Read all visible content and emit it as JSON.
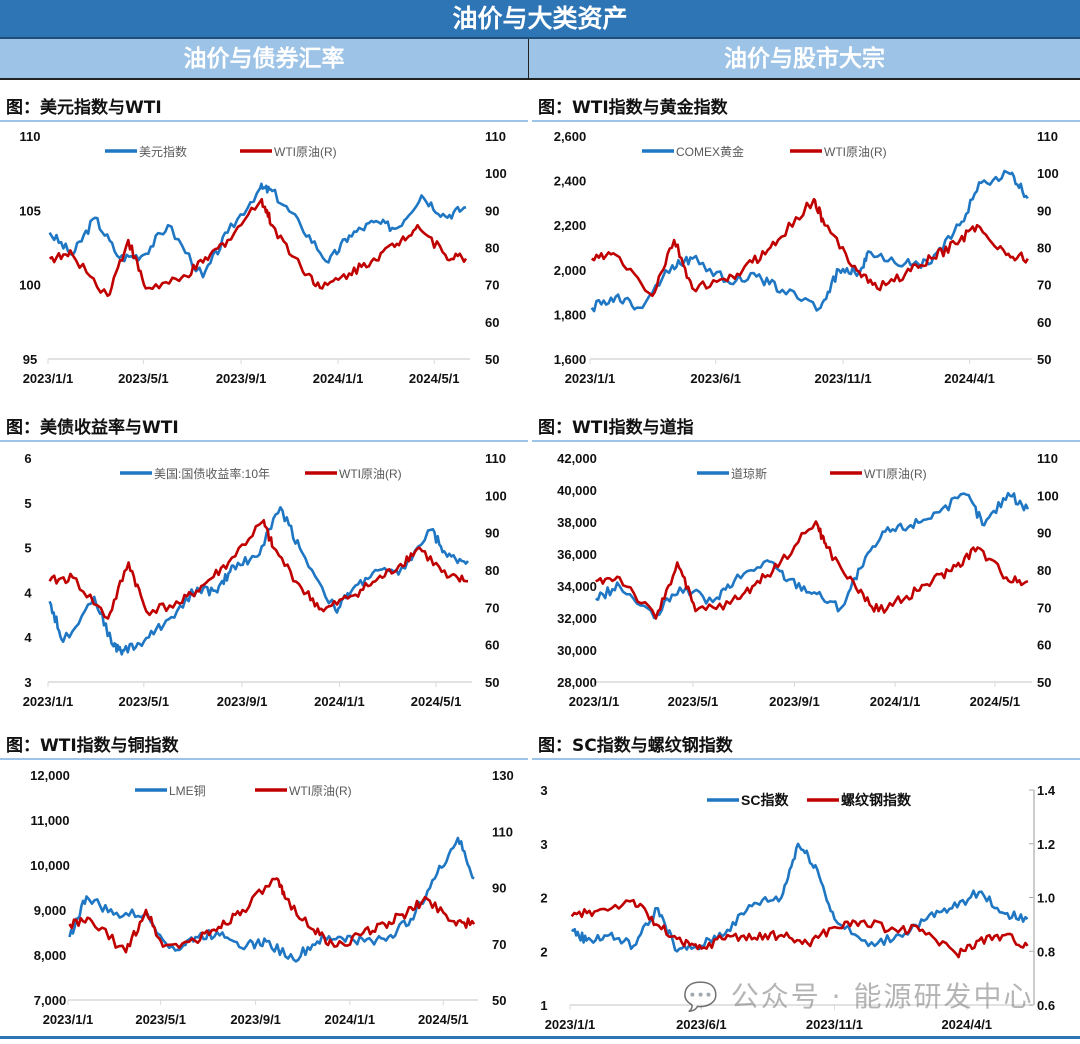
{
  "header": {
    "title": "油价与大类资产"
  },
  "sections": [
    {
      "label": "油价与债券汇率"
    },
    {
      "label": "油价与股市大宗"
    }
  ],
  "colors": {
    "header_bg": "#2E75B6",
    "subheader_bg": "#9DC3E6",
    "series_blue": "#1F77C4",
    "series_red": "#C00000"
  },
  "watermark": "公众号 · 能源研发中心",
  "chart_data": [
    {
      "id": "usd",
      "type": "line",
      "title": "图：美元指数与WTI",
      "xticks": [
        "2023/1/1",
        "2023/5/1",
        "2023/9/1",
        "2024/1/1",
        "2024/5/1"
      ],
      "xlim": [
        "2023-01-01",
        "2024-06-15"
      ],
      "yleft": {
        "ticks": [
          "95",
          "100",
          "105",
          "110"
        ],
        "lim": [
          95,
          110
        ]
      },
      "yright": {
        "ticks": [
          "50",
          "60",
          "70",
          "80",
          "90",
          "100",
          "110"
        ],
        "lim": [
          50,
          110
        ]
      },
      "legend_position": "top-center",
      "series": [
        {
          "name": "美元指数",
          "color": "#1F77C4",
          "axis": "left",
          "dates": [
            "2023-01-03",
            "2023-02-01",
            "2023-03-01",
            "2023-04-01",
            "2023-05-01",
            "2023-06-01",
            "2023-07-15",
            "2023-08-15",
            "2023-09-25",
            "2023-10-10",
            "2023-11-15",
            "2023-12-20",
            "2024-01-15",
            "2024-02-15",
            "2024-03-15",
            "2024-04-15",
            "2024-05-15",
            "2024-06-10"
          ],
          "values": [
            103.5,
            102.0,
            104.5,
            101.8,
            102.0,
            104.0,
            100.5,
            103.5,
            106.5,
            106.3,
            104.0,
            101.5,
            103.3,
            104.2,
            103.8,
            106.0,
            104.6,
            105.2
          ]
        },
        {
          "name": "WTI原油(R)",
          "color": "#C00000",
          "axis": "right",
          "dates": [
            "2023-01-03",
            "2023-02-01",
            "2023-03-17",
            "2023-04-12",
            "2023-05-04",
            "2023-06-15",
            "2023-07-15",
            "2023-08-15",
            "2023-09-27",
            "2023-10-10",
            "2023-11-15",
            "2023-12-12",
            "2024-01-15",
            "2024-02-15",
            "2024-03-15",
            "2024-04-10",
            "2024-05-15",
            "2024-06-10"
          ],
          "values": [
            77,
            78,
            67,
            82,
            69,
            71,
            76,
            82,
            93,
            86,
            75,
            69,
            73,
            77,
            81,
            86,
            78,
            77
          ]
        }
      ]
    },
    {
      "id": "ust",
      "type": "line",
      "title": "图：美债收益率与WTI",
      "xticks": [
        "2023/1/1",
        "2023/5/1",
        "2023/9/1",
        "2024/1/1",
        "2024/5/1"
      ],
      "xlim": [
        "2023-01-01",
        "2024-06-15"
      ],
      "yleft": {
        "ticks": [
          "3",
          "4",
          "4",
          "5",
          "5",
          "6"
        ],
        "lim": [
          3,
          5.5
        ]
      },
      "yright": {
        "ticks": [
          "50",
          "60",
          "70",
          "80",
          "90",
          "100",
          "110"
        ],
        "lim": [
          50,
          110
        ]
      },
      "legend_position": "top-center",
      "series": [
        {
          "name": "美国:国债收益率:10年",
          "color": "#1F77C4",
          "axis": "left",
          "dates": [
            "2023-01-03",
            "2023-01-20",
            "2023-02-28",
            "2023-03-24",
            "2023-04-06",
            "2023-05-01",
            "2023-06-01",
            "2023-07-07",
            "2023-08-01",
            "2023-08-21",
            "2023-09-20",
            "2023-10-19",
            "2023-11-15",
            "2023-12-27",
            "2024-01-15",
            "2024-02-15",
            "2024-03-15",
            "2024-04-25",
            "2024-05-15",
            "2024-06-10"
          ],
          "values": [
            3.9,
            3.45,
            3.95,
            3.4,
            3.35,
            3.45,
            3.7,
            4.05,
            4.0,
            4.3,
            4.4,
            4.95,
            4.45,
            3.8,
            4.0,
            4.25,
            4.2,
            4.7,
            4.4,
            4.35
          ]
        },
        {
          "name": "WTI原油(R)",
          "color": "#C00000",
          "axis": "right",
          "dates": [
            "2023-01-03",
            "2023-02-01",
            "2023-03-17",
            "2023-04-12",
            "2023-05-04",
            "2023-06-15",
            "2023-07-15",
            "2023-08-15",
            "2023-09-27",
            "2023-10-10",
            "2023-11-15",
            "2023-12-12",
            "2024-01-15",
            "2024-02-15",
            "2024-03-15",
            "2024-04-10",
            "2024-05-15",
            "2024-06-10"
          ],
          "values": [
            77,
            78,
            67,
            82,
            69,
            71,
            76,
            82,
            93,
            86,
            75,
            69,
            73,
            77,
            81,
            86,
            78,
            77
          ]
        }
      ]
    },
    {
      "id": "copper",
      "type": "line",
      "title": "图：WTI指数与铜指数",
      "xticks": [
        "2023/1/1",
        "2023/5/1",
        "2023/9/1",
        "2024/1/1",
        "2024/5/1"
      ],
      "xlim": [
        "2023-01-01",
        "2024-06-15"
      ],
      "yleft": {
        "ticks": [
          "7,000",
          "8,000",
          "9,000",
          "10,000",
          "11,000",
          "12,000"
        ],
        "lim": [
          7000,
          12000
        ]
      },
      "yright": {
        "ticks": [
          "50",
          "70",
          "90",
          "110",
          "130"
        ],
        "lim": [
          50,
          130
        ]
      },
      "legend_position": "top-center",
      "series": [
        {
          "name": "LME铜",
          "color": "#1F77C4",
          "axis": "left",
          "dates": [
            "2023-01-03",
            "2023-01-25",
            "2023-03-01",
            "2023-04-10",
            "2023-05-20",
            "2023-06-15",
            "2023-07-20",
            "2023-08-20",
            "2023-09-15",
            "2023-10-20",
            "2023-11-20",
            "2023-12-20",
            "2024-01-20",
            "2024-02-20",
            "2024-03-20",
            "2024-04-20",
            "2024-05-20",
            "2024-06-10"
          ],
          "values": [
            8400,
            9300,
            8900,
            8900,
            8100,
            8400,
            8500,
            8200,
            8300,
            7900,
            8300,
            8400,
            8300,
            8400,
            8800,
            9700,
            10600,
            9700
          ]
        },
        {
          "name": "WTI原油(R)",
          "color": "#C00000",
          "axis": "right",
          "dates": [
            "2023-01-03",
            "2023-02-01",
            "2023-03-17",
            "2023-04-12",
            "2023-05-04",
            "2023-06-15",
            "2023-07-15",
            "2023-08-15",
            "2023-09-27",
            "2023-10-10",
            "2023-11-15",
            "2023-12-12",
            "2024-01-15",
            "2024-02-15",
            "2024-03-15",
            "2024-04-10",
            "2024-05-15",
            "2024-06-10"
          ],
          "values": [
            77,
            78,
            67,
            82,
            69,
            71,
            76,
            82,
            93,
            86,
            75,
            69,
            73,
            77,
            81,
            86,
            78,
            77
          ]
        }
      ]
    },
    {
      "id": "gold",
      "type": "line",
      "title": "图：WTI指数与黄金指数",
      "xticks": [
        "2023/1/1",
        "2023/6/1",
        "2023/11/1",
        "2024/4/1"
      ],
      "xlim": [
        "2023-01-01",
        "2024-06-15"
      ],
      "yleft": {
        "ticks": [
          "1,600",
          "1,800",
          "2,000",
          "2,200",
          "2,400",
          "2,600"
        ],
        "lim": [
          1600,
          2600
        ]
      },
      "yright": {
        "ticks": [
          "50",
          "60",
          "70",
          "80",
          "90",
          "100",
          "110"
        ],
        "lim": [
          50,
          110
        ]
      },
      "legend_position": "top-center",
      "series": [
        {
          "name": "COMEX黄金",
          "color": "#1F77C4",
          "axis": "left",
          "dates": [
            "2023-01-03",
            "2023-02-01",
            "2023-03-01",
            "2023-04-10",
            "2023-05-04",
            "2023-06-15",
            "2023-07-20",
            "2023-08-20",
            "2023-10-05",
            "2023-10-27",
            "2023-11-20",
            "2023-12-04",
            "2024-01-15",
            "2024-02-15",
            "2024-03-20",
            "2024-04-15",
            "2024-05-20",
            "2024-06-10"
          ],
          "values": [
            1830,
            1880,
            1830,
            2020,
            2050,
            1950,
            1970,
            1910,
            1830,
            2000,
            1990,
            2080,
            2030,
            2030,
            2200,
            2390,
            2430,
            2320
          ]
        },
        {
          "name": "WTI原油(R)",
          "color": "#C00000",
          "axis": "right",
          "dates": [
            "2023-01-03",
            "2023-02-01",
            "2023-03-17",
            "2023-04-12",
            "2023-05-04",
            "2023-06-15",
            "2023-07-15",
            "2023-08-15",
            "2023-09-27",
            "2023-10-10",
            "2023-11-15",
            "2023-12-12",
            "2024-01-15",
            "2024-02-15",
            "2024-03-15",
            "2024-04-10",
            "2024-05-15",
            "2024-06-10"
          ],
          "values": [
            77,
            78,
            67,
            82,
            69,
            71,
            76,
            82,
            93,
            86,
            75,
            69,
            73,
            77,
            81,
            86,
            78,
            77
          ]
        }
      ]
    },
    {
      "id": "dow",
      "type": "line",
      "title": "图：WTI指数与道指",
      "xticks": [
        "2023/1/1",
        "2023/5/1",
        "2023/9/1",
        "2024/1/1",
        "2024/5/1"
      ],
      "xlim": [
        "2023-01-01",
        "2024-06-15"
      ],
      "yleft": {
        "ticks": [
          "28,000",
          "30,000",
          "32,000",
          "34,000",
          "36,000",
          "38,000",
          "40,000",
          "42,000"
        ],
        "lim": [
          28000,
          42000
        ]
      },
      "yright": {
        "ticks": [
          "50",
          "60",
          "70",
          "80",
          "90",
          "100",
          "110"
        ],
        "lim": [
          50,
          110
        ]
      },
      "legend_position": "top-center",
      "series": [
        {
          "name": "道琼斯",
          "color": "#1F77C4",
          "axis": "left",
          "dates": [
            "2023-01-03",
            "2023-02-01",
            "2023-03-15",
            "2023-04-15",
            "2023-05-25",
            "2023-06-20",
            "2023-07-30",
            "2023-08-25",
            "2023-09-25",
            "2023-10-27",
            "2023-11-20",
            "2023-12-20",
            "2024-01-20",
            "2024-02-20",
            "2024-03-28",
            "2024-04-18",
            "2024-05-17",
            "2024-06-10"
          ],
          "values": [
            33200,
            34000,
            32000,
            33900,
            33000,
            34300,
            35600,
            34400,
            33600,
            32600,
            35100,
            37400,
            37800,
            38600,
            39700,
            37800,
            39800,
            38800
          ]
        },
        {
          "name": "WTI原油(R)",
          "color": "#C00000",
          "axis": "right",
          "dates": [
            "2023-01-03",
            "2023-02-01",
            "2023-03-17",
            "2023-04-12",
            "2023-05-04",
            "2023-06-15",
            "2023-07-15",
            "2023-08-15",
            "2023-09-27",
            "2023-10-10",
            "2023-11-15",
            "2023-12-12",
            "2024-01-15",
            "2024-02-15",
            "2024-03-15",
            "2024-04-10",
            "2024-05-15",
            "2024-06-10"
          ],
          "values": [
            77,
            78,
            67,
            82,
            69,
            71,
            76,
            82,
            93,
            86,
            75,
            69,
            73,
            77,
            81,
            86,
            78,
            77
          ]
        }
      ]
    },
    {
      "id": "sc",
      "type": "line",
      "title": "图：SC指数与螺纹钢指数",
      "xticks": [
        "2023/1/1",
        "2023/6/1",
        "2023/11/1",
        "2024/4/1"
      ],
      "xlim": [
        "2023-01-01",
        "2024-06-15"
      ],
      "yleft": {
        "ticks": [
          "1",
          "2",
          "2",
          "3",
          "3"
        ],
        "lim": [
          1,
          3
        ]
      },
      "yright": {
        "ticks": [
          "0.6",
          "0.8",
          "1.0",
          "1.2",
          "1.4"
        ],
        "lim": [
          0.6,
          1.4
        ]
      },
      "legend_position": "top-center",
      "series": [
        {
          "name": "SC指数",
          "color": "#1F77C4",
          "axis": "left",
          "dates": [
            "2023-01-03",
            "2023-01-20",
            "2023-02-15",
            "2023-03-15",
            "2023-04-12",
            "2023-05-04",
            "2023-06-01",
            "2023-07-01",
            "2023-08-01",
            "2023-09-01",
            "2023-09-20",
            "2023-10-10",
            "2023-11-01",
            "2023-12-10",
            "2024-01-15",
            "2024-02-15",
            "2024-03-15",
            "2024-04-15",
            "2024-05-15",
            "2024-06-10"
          ],
          "values": [
            1.7,
            1.6,
            1.65,
            1.55,
            1.9,
            1.5,
            1.55,
            1.7,
            1.95,
            2.0,
            2.5,
            2.3,
            1.8,
            1.55,
            1.65,
            1.8,
            1.9,
            2.05,
            1.85,
            1.8
          ]
        },
        {
          "name": "螺纹钢指数",
          "color": "#C00000",
          "axis": "right",
          "dates": [
            "2023-01-03",
            "2023-02-01",
            "2023-03-15",
            "2023-04-10",
            "2023-05-10",
            "2023-06-01",
            "2023-07-01",
            "2023-08-01",
            "2023-09-01",
            "2023-10-01",
            "2023-11-01",
            "2023-12-01",
            "2024-01-10",
            "2024-02-10",
            "2024-03-20",
            "2024-04-15",
            "2024-05-15",
            "2024-06-10"
          ],
          "values": [
            0.93,
            0.95,
            0.99,
            0.9,
            0.83,
            0.81,
            0.86,
            0.85,
            0.86,
            0.83,
            0.89,
            0.91,
            0.88,
            0.88,
            0.79,
            0.84,
            0.86,
            0.82
          ]
        }
      ]
    }
  ]
}
